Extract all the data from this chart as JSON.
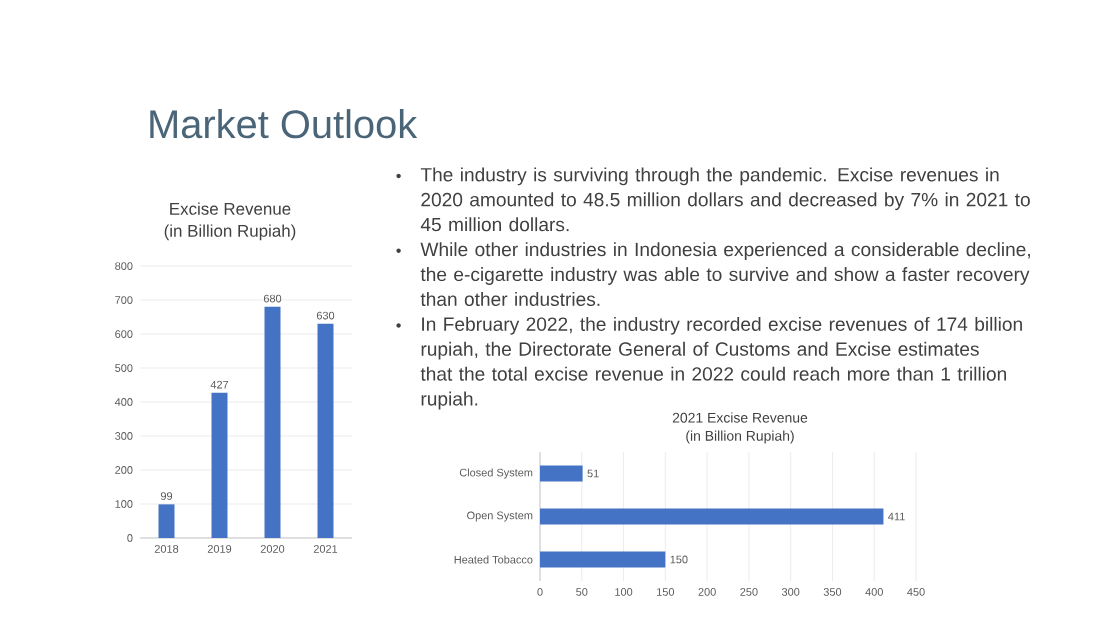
{
  "chart_data": [
    {
      "type": "other",
      "title": "Market Outlook",
      "annotations": [
        "The industry is surviving through the pandemic. Excise revenues in 2020 amounted to 48.5 million dollars and decreased by 7% in 2021 to 45 million dollars.",
        "While other industries in Indonesia experienced a considerable decline, the e-cigarette industry was able to survive and show a faster recovery than other industries.",
        "In February 2022, the industry recorded excise revenues of 174 billion rupiah, the Directorate General of Customs and Excise estimates that the total excise revenue in 2022 could reach more than 1 trillion rupiah."
      ]
    },
    {
      "type": "bar",
      "title": "Excise Revenue",
      "subtitle": "(in Billion Rupiah)",
      "categories": [
        "2018",
        "2019",
        "2020",
        "2021"
      ],
      "values": [
        99,
        427,
        680,
        630
      ],
      "color": "#4472c4",
      "ylim": [
        0,
        800
      ],
      "yticks": [
        0,
        100,
        200,
        300,
        400,
        500,
        600,
        700,
        800
      ],
      "grid": "y",
      "data_labels": true
    },
    {
      "type": "bar",
      "orientation": "horizontal",
      "title": "2021 Excise Revenue",
      "subtitle": "(in Billion Rupiah)",
      "categories": [
        "Closed System",
        "Open System",
        "Heated Tobacco"
      ],
      "values": [
        51,
        411,
        150
      ],
      "color": "#4472c4",
      "xlim": [
        0,
        450
      ],
      "xticks": [
        0,
        50,
        100,
        150,
        200,
        250,
        300,
        350,
        400,
        450
      ],
      "grid": "x",
      "data_labels": true
    }
  ]
}
